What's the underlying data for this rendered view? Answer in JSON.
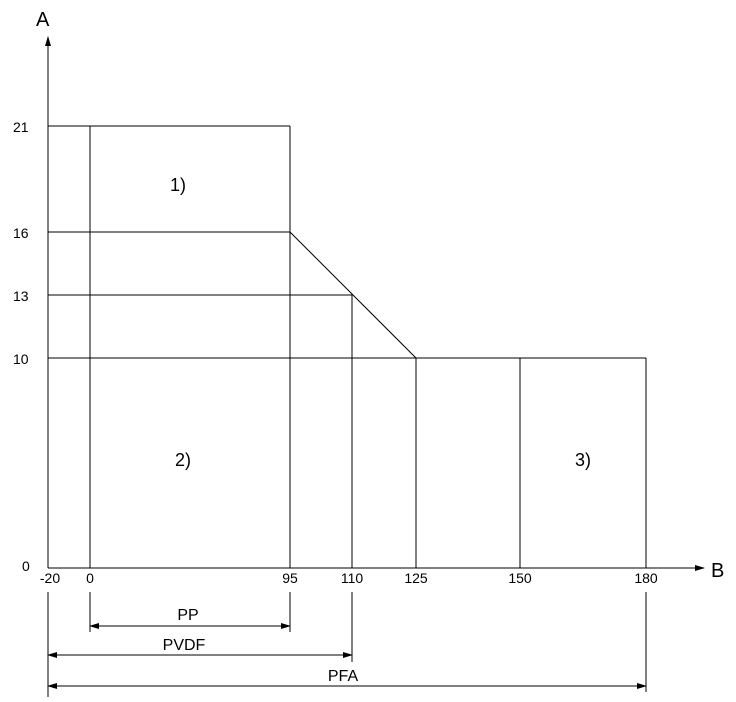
{
  "axes": {
    "y_label": "A",
    "x_label": "B"
  },
  "y_ticks": [
    "21",
    "16",
    "13",
    "10",
    "0"
  ],
  "x_ticks": [
    "-20",
    "0",
    "95",
    "110",
    "125",
    "150",
    "180"
  ],
  "regions": {
    "r1": "1)",
    "r2": "2)",
    "r3": "3)"
  },
  "ranges": {
    "pp": "PP",
    "pvdf": "PVDF",
    "pfa": "PFA"
  },
  "chart_data": {
    "type": "diagram",
    "x_axis": "B",
    "y_axis": "A",
    "boundaries": {
      "PP": [
        [
          0,
          21
        ],
        [
          95,
          21
        ],
        [
          95,
          16
        ],
        [
          110,
          13
        ],
        [
          110,
          0
        ]
      ],
      "PVDF": [
        [
          -20,
          21
        ],
        [
          95,
          21
        ],
        [
          95,
          16
        ],
        [
          125,
          10
        ],
        [
          180,
          10
        ],
        [
          180,
          0
        ]
      ],
      "PFA": [
        [
          -20,
          10
        ],
        [
          180,
          10
        ],
        [
          180,
          0
        ]
      ]
    },
    "ranges": [
      {
        "name": "PP",
        "from": 0,
        "to": 95
      },
      {
        "name": "PVDF",
        "from": -20,
        "to": 110
      },
      {
        "name": "PFA",
        "from": -20,
        "to": 180
      }
    ],
    "regions": [
      "1)",
      "2)",
      "3)"
    ]
  }
}
